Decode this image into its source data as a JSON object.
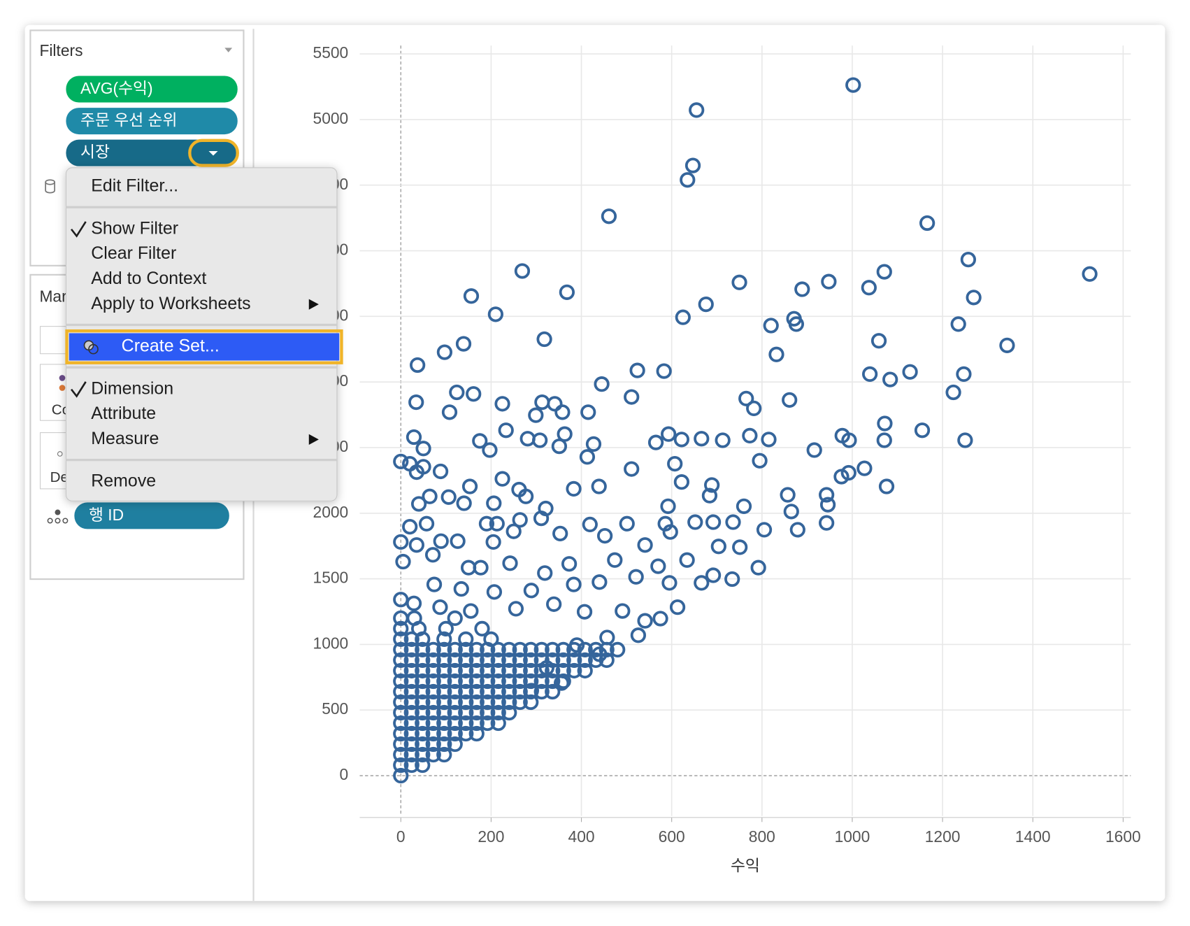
{
  "filters_card": {
    "title": "Filters",
    "pills": [
      "AVG(수익)",
      "주문 우선 순위",
      "시장"
    ]
  },
  "marks_card": {
    "title": "Mar",
    "labels": [
      "Co",
      "De"
    ],
    "pill": "행 ID"
  },
  "context_menu": {
    "groups": [
      [
        {
          "label": "Edit Filter..."
        }
      ],
      [
        {
          "label": "Show Filter",
          "checked": true
        },
        {
          "label": "Clear Filter"
        },
        {
          "label": "Add to Context"
        },
        {
          "label": "Apply to Worksheets",
          "submenu": true
        }
      ],
      [
        {
          "label": "Create Set...",
          "highlighted": true
        }
      ],
      [
        {
          "label": "Dimension",
          "checked": true
        },
        {
          "label": "Attribute"
        },
        {
          "label": "Measure",
          "submenu": true
        }
      ],
      [
        {
          "label": "Remove"
        }
      ]
    ]
  },
  "chart_data": {
    "type": "scatter",
    "x_label": "수익",
    "color": "#35659b",
    "grid": true,
    "xlim": [
      -91,
      1617
    ],
    "ylim": [
      -307,
      5564
    ],
    "xticks": [
      0,
      200,
      400,
      600,
      800,
      1000,
      1200,
      1400,
      1600
    ],
    "yticks": [
      0,
      500,
      1000,
      1500,
      2000,
      2500,
      3000,
      3500,
      4000,
      4500,
      5000,
      5500
    ],
    "x": [
      1002,
      655,
      647,
      635,
      461,
      1166,
      1257,
      269,
      1526,
      1071,
      750,
      948,
      889,
      1037,
      368,
      156,
      1269,
      676,
      210,
      625,
      871,
      820,
      876,
      1235,
      318,
      139,
      1059,
      1343,
      97,
      832,
      37,
      524,
      583,
      1039,
      1128,
      1247,
      1084,
      445,
      124,
      161,
      1224,
      34,
      225,
      511,
      765,
      861,
      313,
      341,
      782,
      108,
      299,
      358,
      415,
      1072,
      29,
      233,
      50,
      175,
      281,
      308,
      363,
      427,
      351,
      565,
      593,
      622,
      666,
      713,
      773,
      815,
      978,
      993,
      1071,
      1155,
      1250,
      197,
      413,
      916,
      795,
      0,
      20,
      50,
      35,
      88,
      511,
      607,
      1027,
      992,
      976,
      1076,
      225,
      262,
      383,
      439,
      622,
      689,
      153,
      277,
      64,
      106,
      140,
      40,
      206,
      321,
      592,
      684,
      760,
      857,
      943,
      946,
      865,
      805,
      879,
      943,
      20,
      57,
      190,
      213,
      264,
      311,
      419,
      501,
      586,
      652,
      692,
      736,
      0,
      35,
      89,
      126,
      205,
      250,
      353,
      452,
      541,
      597,
      704,
      751,
      792,
      5,
      71,
      150,
      177,
      242,
      319,
      373,
      474,
      570,
      634,
      666,
      734,
      692,
      595,
      521,
      440,
      383,
      289,
      207,
      134,
      74,
      0,
      29,
      87,
      155,
      255,
      339,
      407,
      491,
      541,
      613,
      575,
      457,
      526,
      390,
      440,
      323,
      356,
      289,
      0,
      24,
      48,
      96,
      144,
      200,
      0,
      40,
      100,
      180,
      0,
      30,
      120,
      0,
      0,
      24,
      48,
      0,
      24,
      48,
      72,
      96,
      0,
      24,
      48,
      72,
      96,
      120,
      0,
      24,
      48,
      72,
      96,
      120,
      144,
      168,
      0,
      24,
      48,
      72,
      96,
      120,
      144,
      168,
      192,
      216,
      0,
      24,
      48,
      72,
      96,
      120,
      144,
      168,
      192,
      216,
      240,
      0,
      24,
      48,
      72,
      96,
      120,
      144,
      168,
      192,
      216,
      240,
      264,
      288,
      0,
      24,
      48,
      72,
      96,
      120,
      144,
      168,
      192,
      216,
      240,
      264,
      288,
      312,
      336,
      0,
      24,
      48,
      72,
      96,
      120,
      144,
      168,
      192,
      216,
      240,
      264,
      288,
      312,
      336,
      360,
      0,
      24,
      48,
      72,
      96,
      120,
      144,
      168,
      192,
      216,
      240,
      264,
      288,
      312,
      336,
      360,
      384,
      408,
      0,
      24,
      48,
      72,
      96,
      120,
      144,
      168,
      192,
      216,
      240,
      264,
      288,
      312,
      336,
      360,
      384,
      408,
      432,
      456,
      0,
      24,
      48,
      72,
      96,
      120,
      144,
      168,
      192,
      216,
      240,
      264,
      288,
      312,
      336,
      360,
      384,
      408,
      432,
      456,
      480
    ],
    "values": [
      5263,
      5072,
      4650,
      4540,
      4263,
      4211,
      3933,
      3846,
      3823,
      3840,
      3759,
      3765,
      3707,
      3719,
      3684,
      3655,
      3644,
      3592,
      3516,
      3493,
      3482,
      3430,
      3441,
      3441,
      3326,
      3291,
      3314,
      3279,
      3227,
      3210,
      3129,
      3088,
      3083,
      3060,
      3077,
      3060,
      3019,
      2984,
      2921,
      2909,
      2921,
      2846,
      2834,
      2886,
      2874,
      2863,
      2846,
      2834,
      2799,
      2770,
      2747,
      2770,
      2770,
      2684,
      2580,
      2632,
      2493,
      2551,
      2568,
      2556,
      2603,
      2527,
      2510,
      2539,
      2603,
      2562,
      2568,
      2556,
      2591,
      2562,
      2591,
      2556,
      2556,
      2632,
      2556,
      2481,
      2429,
      2481,
      2400,
      2394,
      2377,
      2354,
      2313,
      2319,
      2337,
      2377,
      2342,
      2308,
      2279,
      2204,
      2262,
      2180,
      2186,
      2204,
      2238,
      2215,
      2204,
      2128,
      2128,
      2123,
      2076,
      2071,
      2076,
      2036,
      2053,
      2134,
      2053,
      2140,
      2140,
      2065,
      2013,
      1874,
      1874,
      1926,
      1897,
      1920,
      1920,
      1920,
      1949,
      1961,
      1914,
      1920,
      1920,
      1932,
      1932,
      1932,
      1781,
      1758,
      1787,
      1787,
      1781,
      1862,
      1845,
      1828,
      1758,
      1857,
      1747,
      1741,
      1585,
      1631,
      1683,
      1585,
      1585,
      1619,
      1544,
      1614,
      1643,
      1596,
      1643,
      1469,
      1498,
      1527,
      1469,
      1515,
      1475,
      1457,
      1411,
      1400,
      1423,
      1457,
      1342,
      1313,
      1284,
      1255,
      1272,
      1307,
      1249,
      1255,
      1180,
      1284,
      1197,
      1053,
      1070,
      995,
      925,
      821,
      706,
      648,
      1040,
      1040,
      1040,
      1040,
      1040,
      1040,
      1120,
      1120,
      1120,
      1120,
      1200,
      1200,
      1200,
      0,
      80,
      80,
      80,
      160,
      160,
      160,
      160,
      160,
      240,
      240,
      240,
      240,
      240,
      240,
      320,
      320,
      320,
      320,
      320,
      320,
      320,
      320,
      400,
      400,
      400,
      400,
      400,
      400,
      400,
      400,
      400,
      400,
      480,
      480,
      480,
      480,
      480,
      480,
      480,
      480,
      480,
      480,
      480,
      560,
      560,
      560,
      560,
      560,
      560,
      560,
      560,
      560,
      560,
      560,
      560,
      560,
      640,
      640,
      640,
      640,
      640,
      640,
      640,
      640,
      640,
      640,
      640,
      640,
      640,
      640,
      640,
      720,
      720,
      720,
      720,
      720,
      720,
      720,
      720,
      720,
      720,
      720,
      720,
      720,
      720,
      720,
      720,
      800,
      800,
      800,
      800,
      800,
      800,
      800,
      800,
      800,
      800,
      800,
      800,
      800,
      800,
      800,
      800,
      800,
      800,
      880,
      880,
      880,
      880,
      880,
      880,
      880,
      880,
      880,
      880,
      880,
      880,
      880,
      880,
      880,
      880,
      880,
      880,
      880,
      880,
      960,
      960,
      960,
      960,
      960,
      960,
      960,
      960,
      960,
      960,
      960,
      960,
      960,
      960,
      960,
      960,
      960,
      960,
      960,
      960,
      960
    ]
  }
}
